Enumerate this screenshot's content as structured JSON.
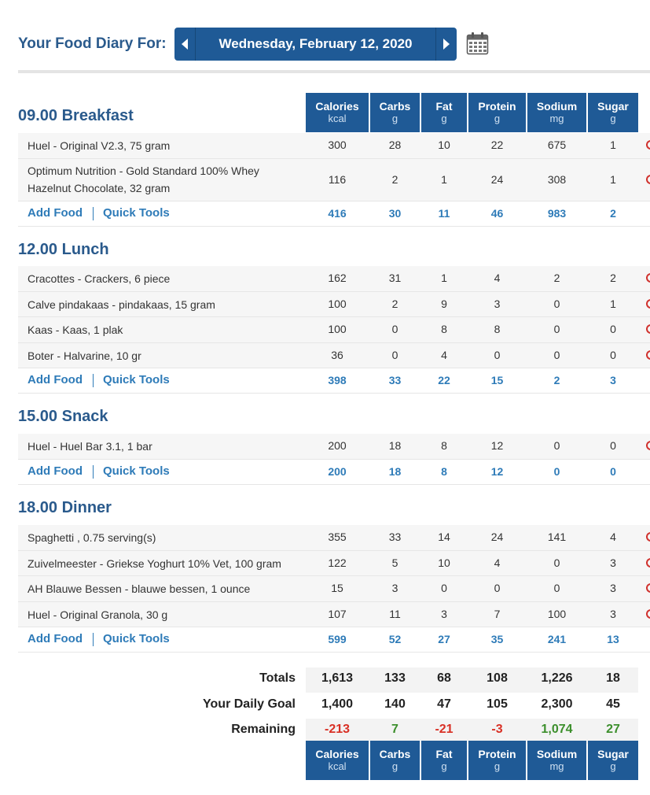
{
  "header": {
    "title": "Your Food Diary For:",
    "date": "Wednesday, February 12, 2020"
  },
  "columns": [
    {
      "name": "Calories",
      "unit": "kcal"
    },
    {
      "name": "Carbs",
      "unit": "g"
    },
    {
      "name": "Fat",
      "unit": "g"
    },
    {
      "name": "Protein",
      "unit": "g"
    },
    {
      "name": "Sodium",
      "unit": "mg"
    },
    {
      "name": "Sugar",
      "unit": "g"
    }
  ],
  "links": {
    "add_food": "Add Food",
    "quick_tools": "Quick Tools"
  },
  "meals": [
    {
      "title": "09.00 Breakfast",
      "items": [
        {
          "name": "Huel - Original V2.3, 75 gram",
          "values": [
            "300",
            "28",
            "10",
            "22",
            "675",
            "1"
          ]
        },
        {
          "name": "Optimum Nutrition - Gold Standard 100% Whey",
          "name2": "Hazelnut Chocolate, 32 gram",
          "values": [
            "116",
            "2",
            "1",
            "24",
            "308",
            "1"
          ]
        }
      ],
      "totals": [
        "416",
        "30",
        "11",
        "46",
        "983",
        "2"
      ]
    },
    {
      "title": "12.00 Lunch",
      "items": [
        {
          "name": "Cracottes - Crackers, 6 piece",
          "values": [
            "162",
            "31",
            "1",
            "4",
            "2",
            "2"
          ]
        },
        {
          "name": "Calve pindakaas - pindakaas, 15 gram",
          "values": [
            "100",
            "2",
            "9",
            "3",
            "0",
            "1"
          ]
        },
        {
          "name": "Kaas - Kaas, 1 plak",
          "values": [
            "100",
            "0",
            "8",
            "8",
            "0",
            "0"
          ]
        },
        {
          "name": "Boter - Halvarine, 10 gr",
          "values": [
            "36",
            "0",
            "4",
            "0",
            "0",
            "0"
          ]
        }
      ],
      "totals": [
        "398",
        "33",
        "22",
        "15",
        "2",
        "3"
      ]
    },
    {
      "title": "15.00 Snack",
      "items": [
        {
          "name": "Huel - Huel Bar 3.1, 1 bar",
          "values": [
            "200",
            "18",
            "8",
            "12",
            "0",
            "0"
          ]
        }
      ],
      "totals": [
        "200",
        "18",
        "8",
        "12",
        "0",
        "0"
      ]
    },
    {
      "title": "18.00 Dinner",
      "items": [
        {
          "name": "Spaghetti , 0.75 serving(s)",
          "values": [
            "355",
            "33",
            "14",
            "24",
            "141",
            "4"
          ]
        },
        {
          "name": "Zuivelmeester - Griekse Yoghurt 10% Vet, 100 gram",
          "values": [
            "122",
            "5",
            "10",
            "4",
            "0",
            "3"
          ]
        },
        {
          "name": "AH Blauwe Bessen - blauwe bessen, 1 ounce",
          "values": [
            "15",
            "3",
            "0",
            "0",
            "0",
            "3"
          ]
        },
        {
          "name": "Huel - Original Granola, 30 g",
          "values": [
            "107",
            "11",
            "3",
            "7",
            "100",
            "3"
          ]
        }
      ],
      "totals": [
        "599",
        "52",
        "27",
        "35",
        "241",
        "13"
      ]
    }
  ],
  "summary": {
    "totals_label": "Totals",
    "totals": [
      "1,613",
      "133",
      "68",
      "108",
      "1,226",
      "18"
    ],
    "goal_label": "Your Daily Goal",
    "goal": [
      "1,400",
      "140",
      "47",
      "105",
      "2,300",
      "45"
    ],
    "remaining_label": "Remaining",
    "remaining": [
      "-213",
      "7",
      "-21",
      "-3",
      "1,074",
      "27"
    ],
    "remaining_status": [
      "over",
      "under",
      "over",
      "over",
      "under",
      "under"
    ]
  },
  "colors": {
    "accent": "#1f5a96",
    "link": "#2e7bb8",
    "over": "#d93025",
    "under": "#3c8f2c"
  }
}
